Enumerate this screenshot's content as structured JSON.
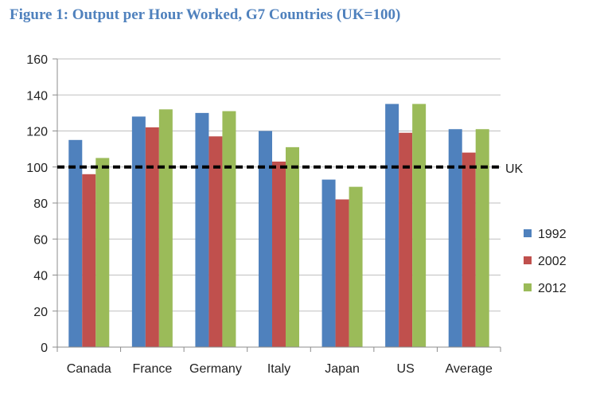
{
  "title": "Figure 1: Output per Hour Worked, G7 Countries (UK=100)",
  "chart_data": {
    "type": "bar",
    "title": "Figure 1: Output per Hour Worked, G7 Countries (UK=100)",
    "categories": [
      "Canada",
      "France",
      "Germany",
      "Italy",
      "Japan",
      "US",
      "Average"
    ],
    "series": [
      {
        "name": "1992",
        "color": "#4f81bd",
        "values": [
          115,
          128,
          130,
          120,
          93,
          135,
          121
        ]
      },
      {
        "name": "2002",
        "color": "#c0504d",
        "values": [
          96,
          122,
          117,
          103,
          82,
          119,
          108
        ]
      },
      {
        "name": "2012",
        "color": "#9bbb59",
        "values": [
          105,
          132,
          131,
          111,
          89,
          135,
          121
        ]
      }
    ],
    "ylim": [
      0,
      160
    ],
    "yticks": [
      0,
      20,
      40,
      60,
      80,
      100,
      120,
      140,
      160
    ],
    "grid": true,
    "legend": "right",
    "reference_line": {
      "value": 100,
      "label": "UK",
      "style": "dashed",
      "color": "#000000"
    },
    "xlabel": "",
    "ylabel": ""
  }
}
